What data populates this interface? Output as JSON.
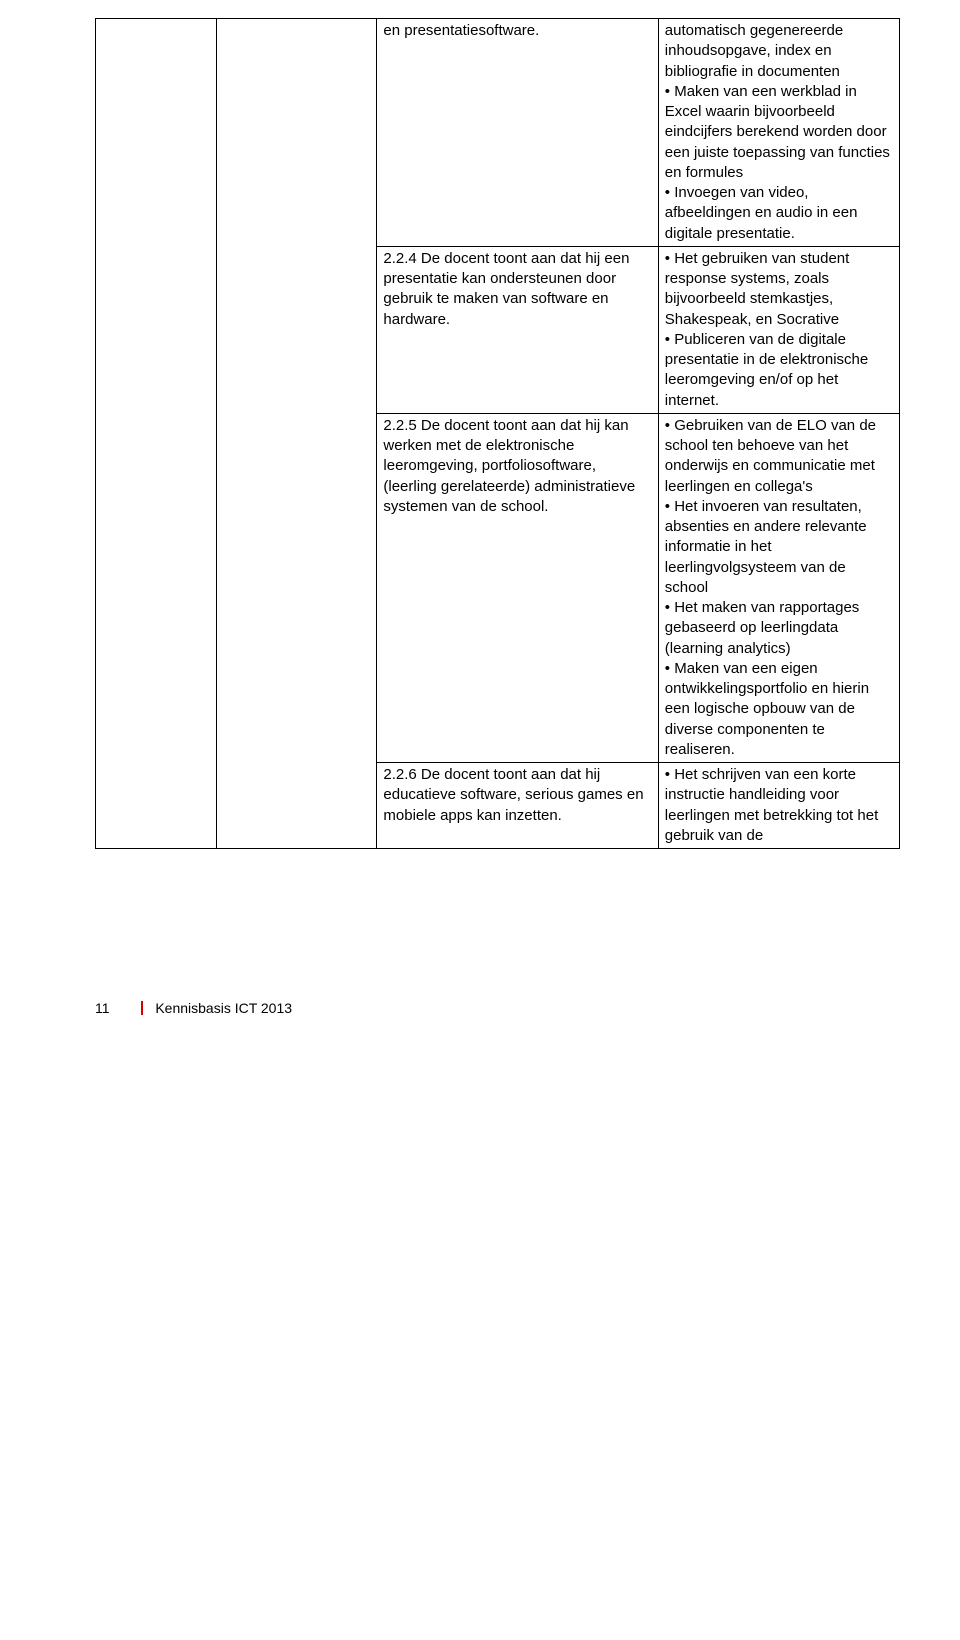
{
  "rows": [
    {
      "c3": "en presentatiesoftware.",
      "c4": "automatisch gegenereerde inhoudsopgave, index en bibliografie in documenten\n• Maken van een werkblad in Excel waarin bijvoorbeeld eindcijfers berekend worden door een juiste toepassing van functies en formules\n• Invoegen van video, afbeeldingen en audio in een digitale presentatie."
    },
    {
      "c3": "2.2.4 De docent toont aan dat hij een presentatie kan ondersteunen door gebruik te maken van software en hardware.",
      "c4": "• Het gebruiken van student response systems, zoals bijvoorbeeld stemkastjes, Shakespeak, en Socrative\n• Publiceren van de digitale presentatie in de elektronische leeromgeving en/of op het internet."
    },
    {
      "c3": "2.2.5 De docent toont aan dat hij kan werken met de elektronische leeromgeving, portfoliosoftware, (leerling gerelateerde) administratieve systemen van de school.",
      "c4": "• Gebruiken van de ELO van de school ten behoeve van het onderwijs en communicatie met leerlingen en collega's\n• Het invoeren van resultaten, absenties en andere relevante informatie in het leerlingvolgsysteem van de school\n• Het maken van rapportages gebaseerd op leerlingdata (learning analytics)\n• Maken van een eigen ontwikkelingsportfolio en hierin een logische opbouw van de diverse componenten te realiseren."
    },
    {
      "c3": "2.2.6 De docent toont aan dat hij educatieve software, serious games en mobiele apps kan inzetten.",
      "c4": "• Het schrijven van een korte instructie handleiding voor leerlingen met betrekking tot het gebruik van de"
    }
  ],
  "footer": {
    "pagenum": "11",
    "doctitle": "Kennisbasis ICT 2013"
  }
}
